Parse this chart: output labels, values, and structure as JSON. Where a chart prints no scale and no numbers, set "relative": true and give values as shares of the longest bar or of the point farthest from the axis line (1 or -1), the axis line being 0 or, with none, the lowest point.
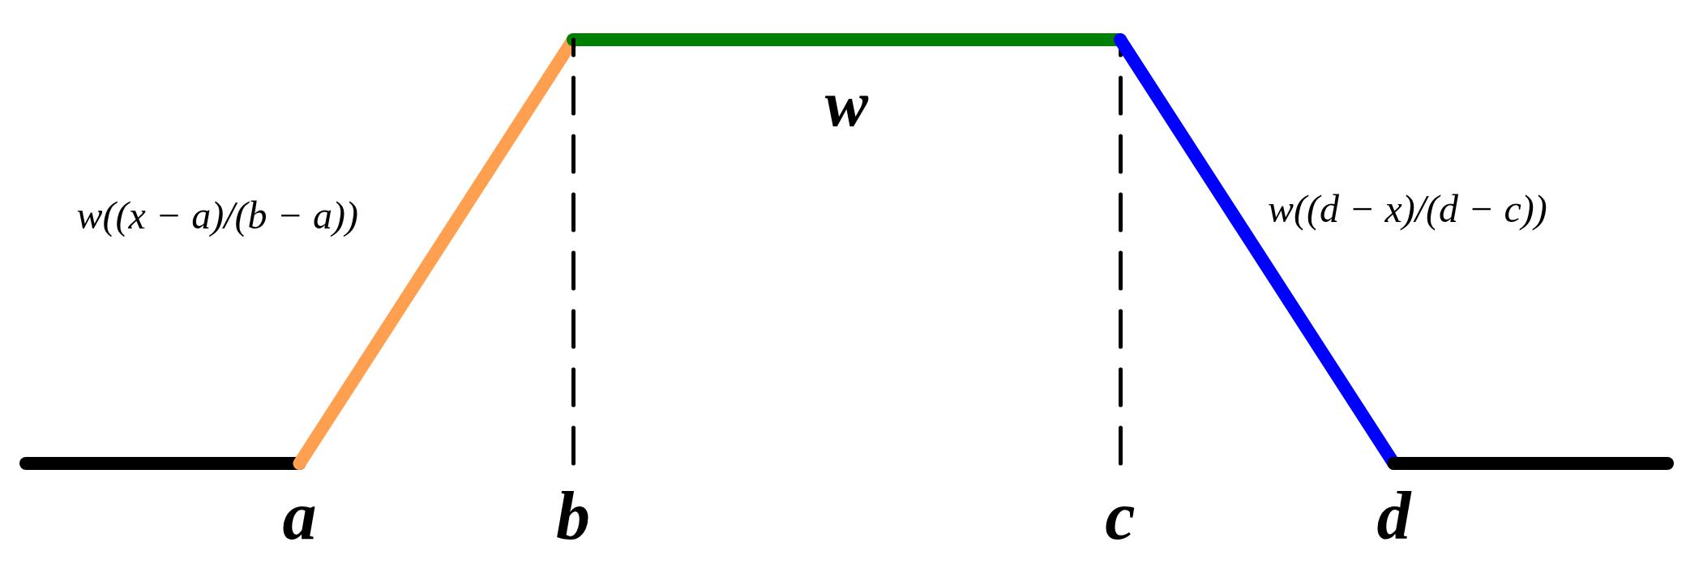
{
  "chart_data": {
    "type": "line",
    "relative": true,
    "categories": [
      null,
      "a",
      "b",
      null,
      "c",
      "d",
      null
    ],
    "series": [
      {
        "color": "#000000",
        "values": [
          0,
          0,
          null,
          null,
          null,
          null,
          null
        ]
      },
      {
        "color": "#ffa050",
        "values": [
          null,
          0,
          1,
          null,
          null,
          null,
          null
        ]
      },
      {
        "color": "#008000",
        "values": [
          null,
          null,
          1,
          1,
          1,
          null,
          null
        ]
      },
      {
        "color": "#0000ff",
        "values": [
          null,
          null,
          null,
          null,
          1,
          0,
          null
        ]
      },
      {
        "color": "#000000",
        "values": [
          null,
          null,
          null,
          null,
          null,
          0,
          0
        ]
      }
    ],
    "ref_lines": [
      {
        "axis": "x",
        "value": "b",
        "color": "#000000",
        "line_style": "dashed"
      },
      {
        "axis": "x",
        "value": "c",
        "color": "#000000",
        "line_style": "dashed"
      }
    ],
    "annotations": [
      "w",
      "w((x − a)/(b − a))",
      "w((d − x)/(d − c))"
    ],
    "marker": "none"
  }
}
